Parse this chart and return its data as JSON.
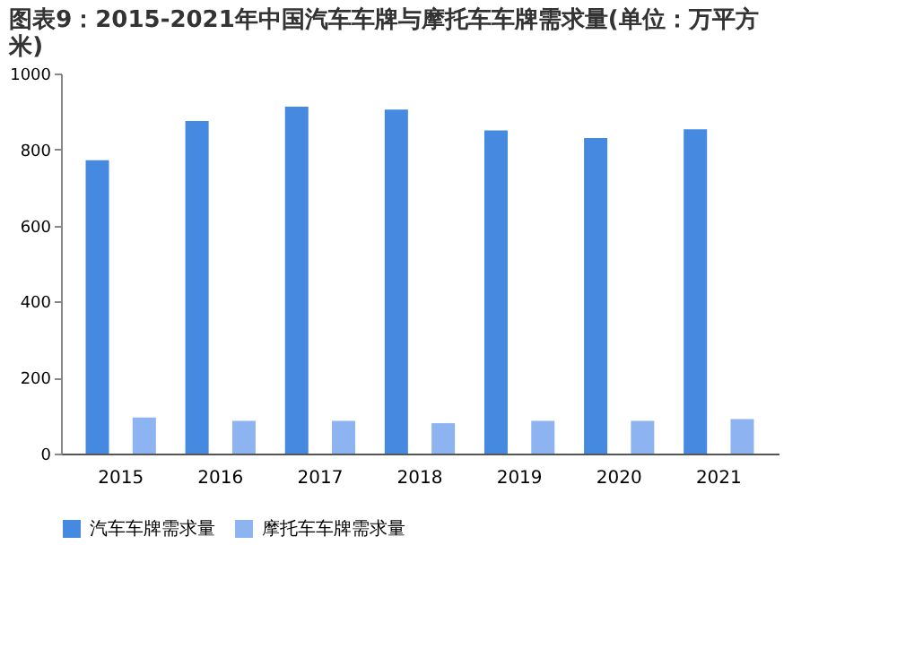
{
  "chart_data": {
    "type": "bar",
    "title": "图表9：2015-2021年中国汽车车牌与摩托车车牌需求量(单位：万平方米)",
    "categories": [
      "2015",
      "2016",
      "2017",
      "2018",
      "2019",
      "2020",
      "2021"
    ],
    "series": [
      {
        "name": "汽车车牌需求量",
        "color": "#4589e0",
        "values": [
          772,
          875,
          913,
          905,
          850,
          830,
          853
        ]
      },
      {
        "name": "摩托车车牌需求量",
        "color": "#8db4f0",
        "values": [
          95,
          86,
          86,
          80,
          86,
          86,
          91
        ]
      }
    ],
    "ylim": [
      0,
      1000
    ],
    "yticks": [
      0,
      200,
      400,
      600,
      800,
      1000
    ],
    "grid": false,
    "legend": "bottom"
  }
}
